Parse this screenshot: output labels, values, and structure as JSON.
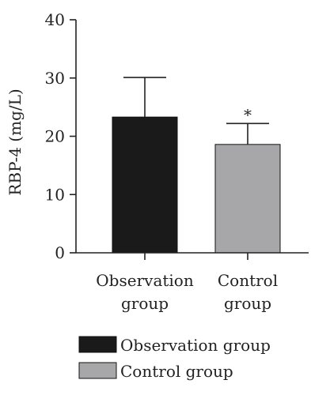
{
  "chart_data": {
    "type": "bar",
    "ylabel": "RBP-4 (mg/L)",
    "ylim": [
      0,
      40
    ],
    "yticks": [
      "0",
      "10",
      "20",
      "30",
      "40"
    ],
    "categories": [
      {
        "line1": "Observation",
        "line2": "group"
      },
      {
        "line1": "Control",
        "line2": "group"
      }
    ],
    "values": [
      23.3,
      18.6
    ],
    "error_upper": [
      30.1,
      22.2
    ],
    "significance": [
      "",
      "*"
    ],
    "colors": [
      "#1a1a1a",
      "#a7a7a9"
    ],
    "grid": false,
    "legend": {
      "placement": "bottom",
      "entries": [
        "Observation group",
        "Control group"
      ]
    }
  }
}
